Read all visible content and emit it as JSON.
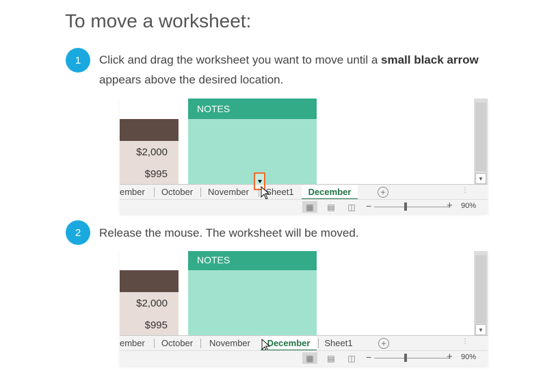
{
  "title": "To move a worksheet:",
  "steps": [
    {
      "number": "1",
      "text_before": "Click and drag the worksheet you want to move until a ",
      "text_bold": "small black arrow",
      "text_after": " appears above the desired location."
    },
    {
      "number": "2",
      "text_before": "Release the mouse. The worksheet will be moved."
    }
  ],
  "screenshots": [
    {
      "cells": {
        "amount_1": "$2,000",
        "amount_2": "$995"
      },
      "notes_header": "NOTES",
      "tabs": [
        "ember",
        "October",
        "November",
        "Sheet1",
        "December"
      ],
      "active_tab": "December",
      "add_sheet_icon": "plus-circle-icon",
      "zoom_level": "90%",
      "drop_indicator": "black-arrow"
    },
    {
      "cells": {
        "amount_1": "$2,000",
        "amount_2": "$995"
      },
      "notes_header": "NOTES",
      "tabs": [
        "ember",
        "October",
        "November",
        "December",
        "Sheet1"
      ],
      "active_tab": "December",
      "add_sheet_icon": "plus-circle-icon",
      "zoom_level": "90%"
    }
  ],
  "colors": {
    "step_badge": "#1aa9df",
    "notes_header": "#33ab88",
    "notes_body": "#a1e2cf",
    "dark_band": "#5e4b43",
    "light_band": "#e8dcd8",
    "active_tab_text": "#217346",
    "drop_marker_border": "#f26b2b"
  }
}
